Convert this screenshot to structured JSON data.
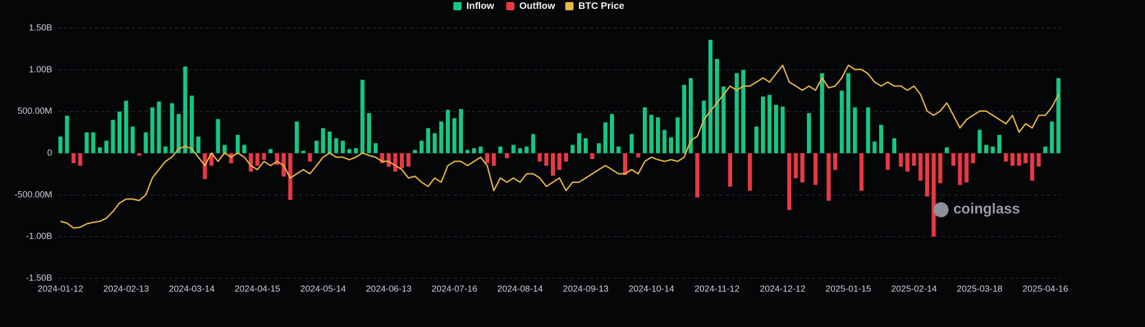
{
  "chart_data": {
    "type": "bar",
    "watermark": "coinglass",
    "categories": [
      "2024-01-12",
      null,
      null,
      null,
      null,
      null,
      null,
      null,
      null,
      null,
      "2024-02-13",
      null,
      null,
      null,
      null,
      null,
      null,
      null,
      null,
      null,
      "2024-03-14",
      null,
      null,
      null,
      null,
      null,
      null,
      null,
      null,
      null,
      "2024-04-15",
      null,
      null,
      null,
      null,
      null,
      null,
      null,
      null,
      null,
      "2024-05-14",
      null,
      null,
      null,
      null,
      null,
      null,
      null,
      null,
      null,
      "2024-06-13",
      null,
      null,
      null,
      null,
      null,
      null,
      null,
      null,
      null,
      "2024-07-16",
      null,
      null,
      null,
      null,
      null,
      null,
      null,
      null,
      null,
      "2024-08-14",
      null,
      null,
      null,
      null,
      null,
      null,
      null,
      null,
      null,
      "2024-09-13",
      null,
      null,
      null,
      null,
      null,
      null,
      null,
      null,
      null,
      "2024-10-14",
      null,
      null,
      null,
      null,
      null,
      null,
      null,
      null,
      null,
      "2024-11-12",
      null,
      null,
      null,
      null,
      null,
      null,
      null,
      null,
      null,
      "2024-12-12",
      null,
      null,
      null,
      null,
      null,
      null,
      null,
      null,
      null,
      "2025-01-15",
      null,
      null,
      null,
      null,
      null,
      null,
      null,
      null,
      null,
      "2025-02-14",
      null,
      null,
      null,
      null,
      null,
      null,
      null,
      null,
      null,
      "2025-03-18",
      null,
      null,
      null,
      null,
      null,
      null,
      null,
      null,
      null,
      "2025-04-16",
      null,
      null
    ],
    "series": [
      {
        "name": "Inflow",
        "color": "#16c784",
        "values": [
          200000000.0,
          450000000.0,
          null,
          null,
          250000000.0,
          250000000.0,
          70000000.0,
          150000000.0,
          400000000.0,
          500000000.0,
          630000000.0,
          320000000.0,
          null,
          250000000.0,
          550000000.0,
          620000000.0,
          80000000.0,
          600000000.0,
          470000000.0,
          1040000000.0,
          690000000.0,
          200000000.0,
          null,
          null,
          410000000.0,
          100000000.0,
          null,
          220000000.0,
          100000000.0,
          null,
          null,
          null,
          50000000.0,
          null,
          null,
          null,
          380000000.0,
          30000000.0,
          null,
          150000000.0,
          300000000.0,
          260000000.0,
          180000000.0,
          150000000.0,
          50000000.0,
          60000000.0,
          880000000.0,
          480000000.0,
          120000000.0,
          null,
          null,
          null,
          null,
          null,
          40000000.0,
          150000000.0,
          300000000.0,
          240000000.0,
          380000000.0,
          520000000.0,
          420000000.0,
          530000000.0,
          40000000.0,
          60000000.0,
          80000000.0,
          null,
          null,
          80000000.0,
          null,
          100000000.0,
          60000000.0,
          80000000.0,
          230000000.0,
          null,
          null,
          null,
          null,
          null,
          100000000.0,
          240000000.0,
          180000000.0,
          null,
          120000000.0,
          370000000.0,
          470000000.0,
          80000000.0,
          null,
          230000000.0,
          null,
          550000000.0,
          460000000.0,
          430000000.0,
          280000000.0,
          190000000.0,
          430000000.0,
          820000000.0,
          900000000.0,
          null,
          630000000.0,
          1360000000.0,
          1130000000.0,
          800000000.0,
          null,
          960000000.0,
          1000000000.0,
          null,
          320000000.0,
          680000000.0,
          700000000.0,
          580000000.0,
          560000000.0,
          null,
          null,
          null,
          480000000.0,
          null,
          960000000.0,
          null,
          null,
          750000000.0,
          960000000.0,
          550000000.0,
          null,
          550000000.0,
          140000000.0,
          340000000.0,
          null,
          180000000.0,
          null,
          null,
          null,
          null,
          null,
          null,
          null,
          70000000.0,
          null,
          null,
          null,
          null,
          280000000.0,
          100000000.0,
          80000000.0,
          220000000.0,
          null,
          null,
          null,
          null,
          null,
          null,
          80000000.0,
          380000000.0,
          900000000.0
        ]
      },
      {
        "name": "Outflow",
        "color": "#ea3943",
        "values": [
          null,
          null,
          -120000000.0,
          -150000000.0,
          null,
          null,
          null,
          null,
          null,
          null,
          null,
          null,
          -30000000.0,
          null,
          null,
          null,
          null,
          null,
          null,
          null,
          null,
          null,
          -310000000.0,
          -150000000.0,
          null,
          null,
          -120000000.0,
          null,
          null,
          -220000000.0,
          -150000000.0,
          -80000000.0,
          null,
          -140000000.0,
          -280000000.0,
          -560000000.0,
          null,
          null,
          -100000000.0,
          null,
          null,
          null,
          null,
          null,
          null,
          null,
          null,
          null,
          null,
          -120000000.0,
          -160000000.0,
          -220000000.0,
          -180000000.0,
          -160000000.0,
          null,
          null,
          null,
          null,
          null,
          null,
          null,
          null,
          null,
          null,
          null,
          -120000000.0,
          -150000000.0,
          null,
          -60000000.0,
          null,
          null,
          null,
          null,
          -100000000.0,
          -150000000.0,
          -270000000.0,
          -200000000.0,
          -100000000.0,
          null,
          null,
          null,
          -70000000.0,
          null,
          null,
          null,
          null,
          -260000000.0,
          null,
          -50000000.0,
          null,
          null,
          null,
          null,
          null,
          null,
          null,
          null,
          -530000000.0,
          null,
          null,
          null,
          null,
          -400000000.0,
          null,
          null,
          -450000000.0,
          null,
          null,
          null,
          null,
          null,
          -680000000.0,
          -300000000.0,
          -350000000.0,
          null,
          -380000000.0,
          null,
          -570000000.0,
          -200000000.0,
          null,
          null,
          null,
          -450000000.0,
          null,
          null,
          null,
          -200000000.0,
          null,
          -160000000.0,
          -220000000.0,
          -150000000.0,
          -330000000.0,
          -520000000.0,
          -1000000000.0,
          -360000000.0,
          null,
          -150000000.0,
          -380000000.0,
          -350000000.0,
          -120000000.0,
          null,
          null,
          null,
          null,
          -100000000.0,
          -150000000.0,
          -150000000.0,
          -120000000.0,
          -330000000.0,
          -160000000.0,
          null,
          null,
          null
        ]
      },
      {
        "name": "BTC Price",
        "color": "#e8b647",
        "type": "line",
        "axis": "y2",
        "values": [
          43000,
          42300,
          40300,
          40600,
          42000,
          42600,
          43000,
          44300,
          47000,
          50400,
          52000,
          52000,
          51400,
          53700,
          60500,
          63900,
          67200,
          69000,
          72300,
          73300,
          72300,
          68900,
          65500,
          70600,
          67200,
          70600,
          68900,
          70600,
          68900,
          65500,
          63900,
          67200,
          65500,
          67200,
          65500,
          60500,
          62200,
          63900,
          62200,
          65500,
          68900,
          70600,
          68900,
          68900,
          67900,
          68900,
          70600,
          69600,
          68900,
          67200,
          67200,
          65500,
          63900,
          60500,
          61200,
          58800,
          57100,
          60500,
          58800,
          65500,
          67200,
          67200,
          65500,
          67200,
          68900,
          65500,
          55400,
          60500,
          58800,
          60500,
          58800,
          62200,
          62200,
          60500,
          57100,
          58800,
          60500,
          55400,
          58800,
          58800,
          60500,
          62200,
          63900,
          65500,
          63900,
          62200,
          62200,
          63900,
          62200,
          67200,
          68900,
          67900,
          67200,
          67900,
          67200,
          68900,
          75700,
          77300,
          84100,
          87500,
          90800,
          94200,
          97600,
          95900,
          97600,
          97600,
          99200,
          100900,
          99200,
          102600,
          106000,
          99200,
          97600,
          95900,
          97600,
          95900,
          100900,
          96900,
          97600,
          100900,
          106000,
          104300,
          104300,
          102600,
          99200,
          97600,
          99200,
          97600,
          97600,
          95900,
          97600,
          94200,
          87500,
          85800,
          87500,
          90800,
          85800,
          80700,
          84100,
          85800,
          87500,
          87500,
          85800,
          84100,
          82400,
          85800,
          79000,
          82400,
          80700,
          85800,
          85800,
          89100,
          94200
        ]
      }
    ],
    "ylim": [
      -1500000000.0,
      1500000000.0
    ],
    "yticks": [
      {
        "value": -1500000000.0,
        "label": "-1.50B"
      },
      {
        "value": -1000000000.0,
        "label": "-1.00B"
      },
      {
        "value": -500000000.0,
        "label": "-500.00M"
      },
      0,
      {
        "value": 500000000.0,
        "label": "500.00M"
      },
      {
        "value": 1000000000.0,
        "label": "1.00B"
      },
      {
        "value": 1500000000.0,
        "label": "1.50B"
      }
    ],
    "y2lim": [
      20000,
      121000
    ],
    "grid": true
  }
}
